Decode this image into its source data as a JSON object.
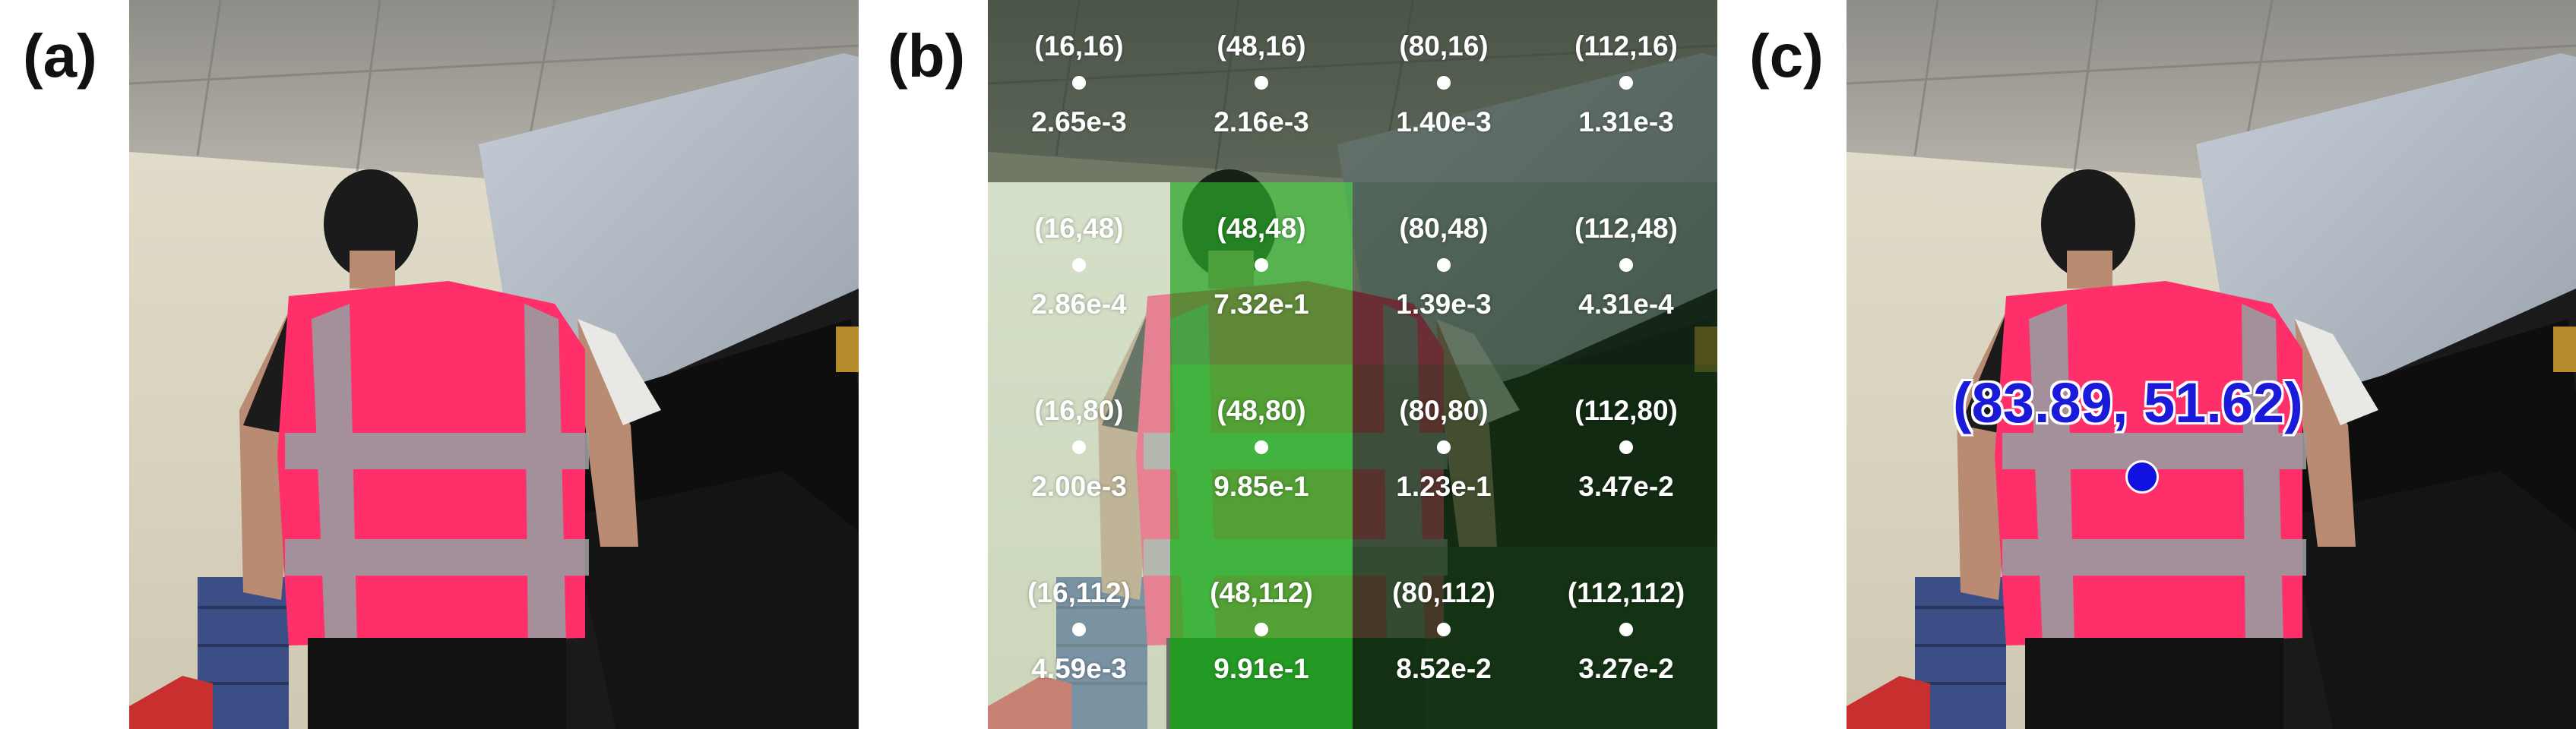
{
  "panels": {
    "a": {
      "label": "(a)"
    },
    "b": {
      "label": "(b)"
    },
    "c": {
      "label": "(c)",
      "prediction": "(83.89, 51.62)"
    }
  },
  "grid": {
    "rows": [
      [
        {
          "coord": "(16,16)",
          "prob": "2.65e-3",
          "p": 0.00265
        },
        {
          "coord": "(48,16)",
          "prob": "2.16e-3",
          "p": 0.00216
        },
        {
          "coord": "(80,16)",
          "prob": "1.40e-3",
          "p": 0.0014
        },
        {
          "coord": "(112,16)",
          "prob": "1.31e-3",
          "p": 0.00131
        }
      ],
      [
        {
          "coord": "(16,48)",
          "prob": "2.86e-4",
          "p": 0.000286
        },
        {
          "coord": "(48,48)",
          "prob": "7.32e-1",
          "p": 0.732
        },
        {
          "coord": "(80,48)",
          "prob": "1.39e-3",
          "p": 0.00139
        },
        {
          "coord": "(112,48)",
          "prob": "4.31e-4",
          "p": 0.000431
        }
      ],
      [
        {
          "coord": "(16,80)",
          "prob": "2.00e-3",
          "p": 0.002
        },
        {
          "coord": "(48,80)",
          "prob": "9.85e-1",
          "p": 0.985
        },
        {
          "coord": "(80,80)",
          "prob": "1.23e-1",
          "p": 0.123
        },
        {
          "coord": "(112,80)",
          "prob": "3.47e-2",
          "p": 0.0347
        }
      ],
      [
        {
          "coord": "(16,112)",
          "prob": "4.59e-3",
          "p": 0.00459
        },
        {
          "coord": "(48,112)",
          "prob": "9.91e-1",
          "p": 0.991
        },
        {
          "coord": "(80,112)",
          "prob": "8.52e-2",
          "p": 0.0852
        },
        {
          "coord": "(112,112)",
          "prob": "3.27e-2",
          "p": 0.0327
        }
      ]
    ]
  },
  "colors": {
    "prediction": "#1a1ad8",
    "vest": "#ff2f6a",
    "overlay_green": "#2a7a2a"
  }
}
